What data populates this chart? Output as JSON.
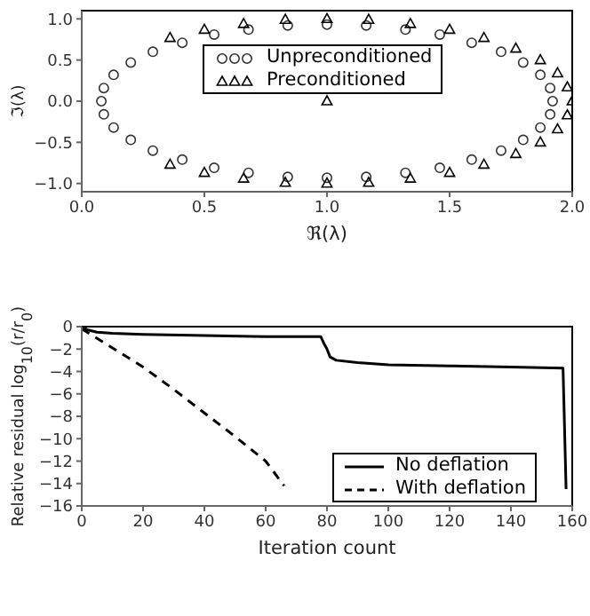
{
  "chart_data": [
    {
      "type": "scatter",
      "xlabel": "ℜ(λ)",
      "ylabel": "ℑ(λ)",
      "xlim": [
        0,
        2
      ],
      "ylim": [
        -1.1,
        1.1
      ],
      "xticks": [
        {
          "value": 0,
          "label": "0.0"
        },
        {
          "value": 0.5,
          "label": "0.5"
        },
        {
          "value": 1,
          "label": "1.0"
        },
        {
          "value": 1.5,
          "label": "1.5"
        },
        {
          "value": 2,
          "label": "2.0"
        }
      ],
      "yticks": [
        {
          "value": -1,
          "label": "−1.0"
        },
        {
          "value": -0.5,
          "label": "−0.5"
        },
        {
          "value": 0,
          "label": "0.0"
        },
        {
          "value": 0.5,
          "label": "0.5"
        },
        {
          "value": 1,
          "label": "1.0"
        }
      ],
      "legend": "top",
      "series": [
        {
          "name": "Unpreconditioned",
          "color": "#333333",
          "marker": "circle",
          "x": [
            1.92,
            1.91,
            1.87,
            1.8,
            1.71,
            1.59,
            1.46,
            1.32,
            1.16,
            1.0,
            0.84,
            0.68,
            0.54,
            0.41,
            0.29,
            0.2,
            0.13,
            0.09,
            0.08,
            0.09,
            0.13,
            0.2,
            0.29,
            0.41,
            0.54,
            0.68,
            0.84,
            1.0,
            1.16,
            1.32,
            1.46,
            1.59,
            1.71,
            1.8,
            1.87,
            1.91
          ],
          "values": [
            0,
            0.16,
            0.32,
            0.47,
            0.6,
            0.71,
            0.81,
            0.87,
            0.92,
            0.93,
            0.92,
            0.87,
            0.81,
            0.71,
            0.6,
            0.47,
            0.32,
            0.16,
            0,
            -0.16,
            -0.32,
            -0.47,
            -0.6,
            -0.71,
            -0.81,
            -0.87,
            -0.92,
            -0.93,
            -0.92,
            -0.87,
            -0.81,
            -0.71,
            -0.6,
            -0.47,
            -0.32,
            -0.16
          ]
        },
        {
          "name": "Preconditioned",
          "color": "#000000",
          "marker": "triangle",
          "x": [
            2.0,
            1.98,
            1.94,
            1.87,
            1.77,
            1.64,
            1.5,
            1.34,
            1.17,
            1.0,
            0.83,
            0.66,
            0.5,
            0.36,
            0.36,
            0.5,
            0.66,
            0.83,
            1.0,
            1.17,
            1.34,
            1.5,
            1.64,
            1.77,
            1.87,
            1.94,
            1.98,
            1.0
          ],
          "values": [
            0,
            0.17,
            0.34,
            0.5,
            0.64,
            0.77,
            0.87,
            0.94,
            0.99,
            1.0,
            0.99,
            0.94,
            0.87,
            0.77,
            -0.77,
            -0.87,
            -0.94,
            -0.99,
            -1.0,
            -0.99,
            -0.94,
            -0.87,
            -0.77,
            -0.64,
            -0.5,
            -0.34,
            -0.17,
            0
          ]
        }
      ]
    },
    {
      "type": "line",
      "xlabel": "Iteration count",
      "ylabel": "Relative residual log$_{10}$(r/r$_{0}$)",
      "xlim": [
        0,
        160
      ],
      "ylim": [
        -16,
        0
      ],
      "xticks": [
        0,
        20,
        40,
        60,
        80,
        100,
        120,
        140,
        160
      ],
      "yticks": [
        {
          "value": -16,
          "label": "−16"
        },
        {
          "value": -14,
          "label": "−14"
        },
        {
          "value": -12,
          "label": "−12"
        },
        {
          "value": -10,
          "label": "−10"
        },
        {
          "value": -8,
          "label": "−8"
        },
        {
          "value": -6,
          "label": "−6"
        },
        {
          "value": -4,
          "label": "−4"
        },
        {
          "value": -2,
          "label": "−2"
        },
        {
          "value": 0,
          "label": "0"
        }
      ],
      "legend": "bottom right",
      "series": [
        {
          "name": "No deflation",
          "color": "#000000",
          "line_style": "solid",
          "x": [
            0,
            2,
            5,
            10,
            20,
            40,
            60,
            78,
            79,
            80,
            81,
            83,
            90,
            100,
            120,
            140,
            157,
            158
          ],
          "values": [
            0,
            -0.3,
            -0.5,
            -0.6,
            -0.7,
            -0.8,
            -0.9,
            -0.9,
            -1.5,
            -2,
            -2.7,
            -3,
            -3.2,
            -3.4,
            -3.5,
            -3.6,
            -3.7,
            -14.5
          ]
        },
        {
          "name": "With deflation",
          "color": "#000000",
          "line_style": "dashed",
          "x": [
            0,
            10,
            20,
            30,
            40,
            50,
            60,
            66
          ],
          "values": [
            -0.2,
            -1.9,
            -3.6,
            -5.6,
            -7.7,
            -9.8,
            -12,
            -14.2
          ]
        }
      ]
    }
  ]
}
